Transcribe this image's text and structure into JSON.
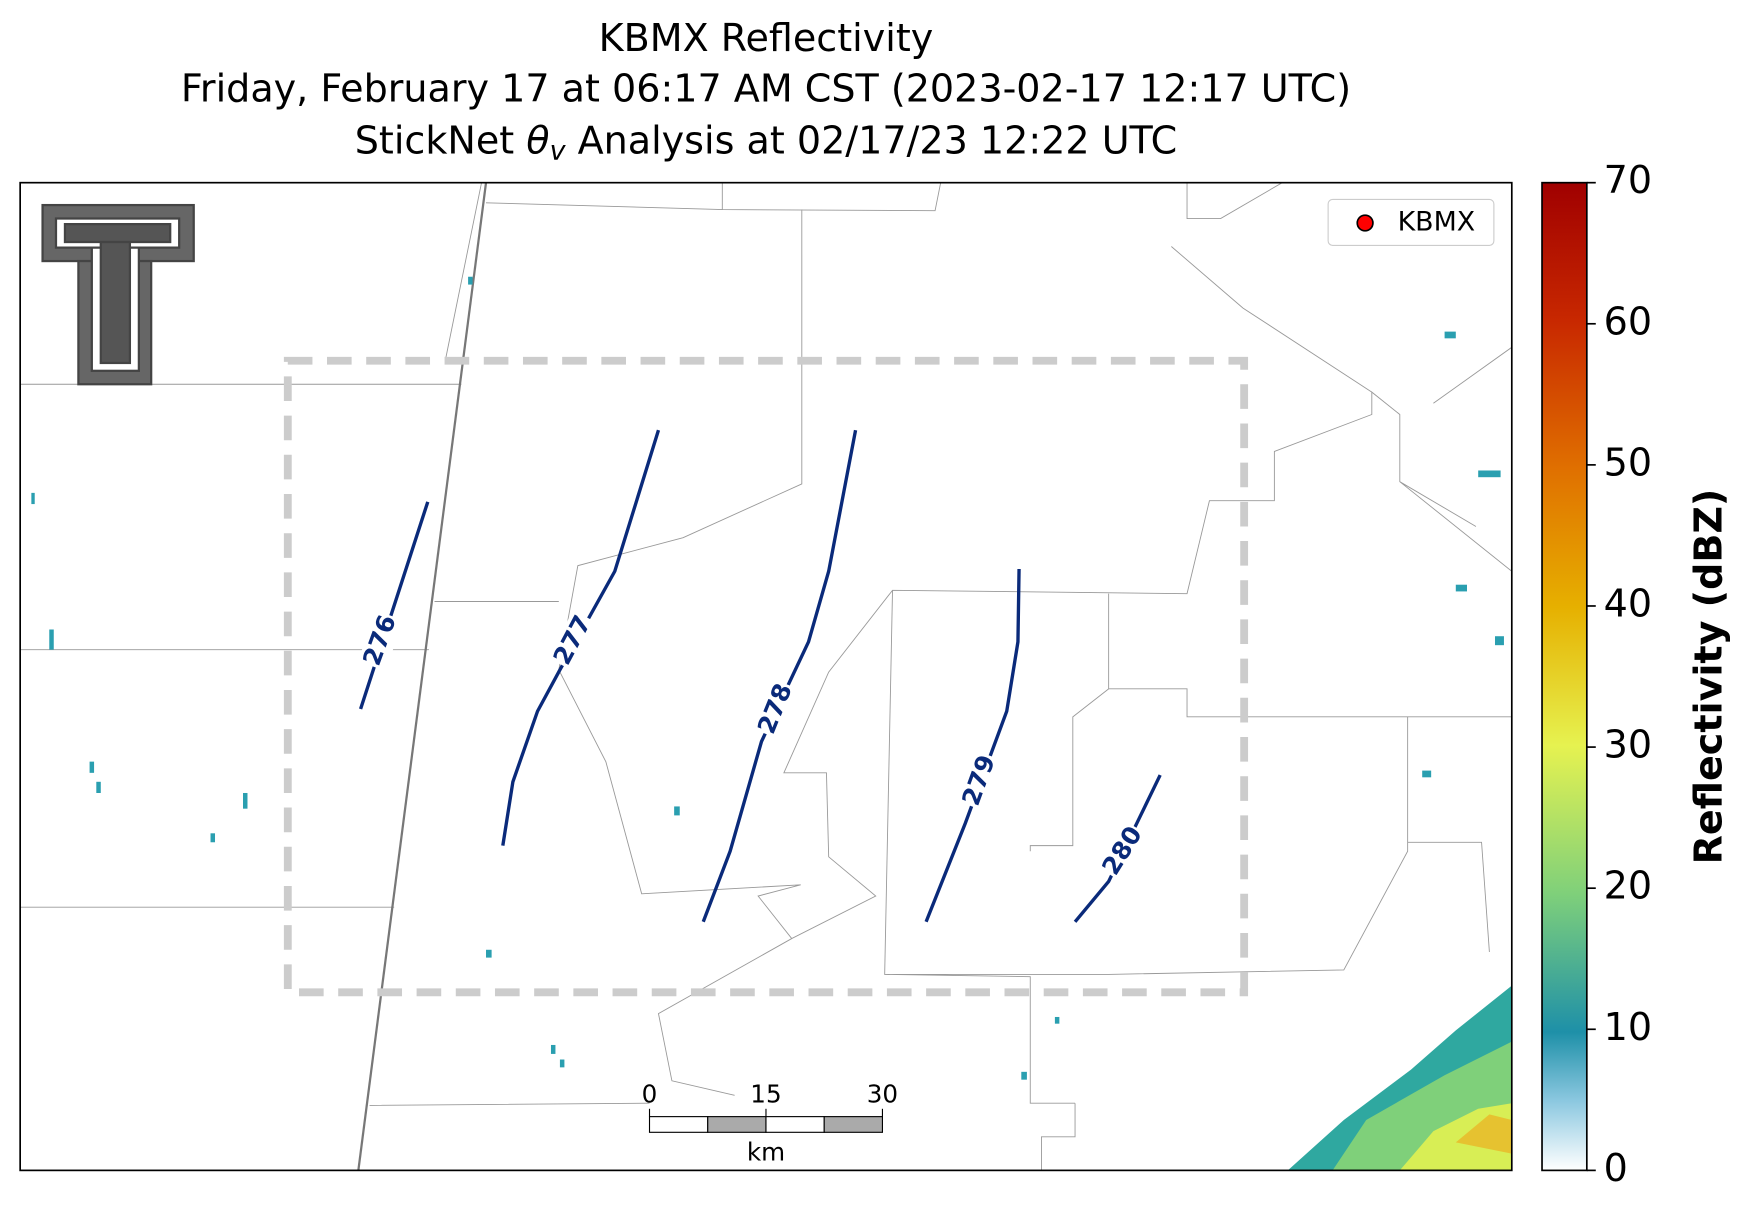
{
  "title": {
    "line1": "KBMX Reflectivity",
    "line2": "Friday, February 17 at 06:17 AM CST (2023-02-17 12:17 UTC)",
    "line3_pre": "StickNet ",
    "line3_symbol": "θ",
    "line3_sub": "v",
    "line3_post": " Analysis at 02/17/23 12:22 UTC"
  },
  "legend": {
    "label": "KBMX",
    "color": "#ff0000"
  },
  "contours": [
    {
      "level": 276
    },
    {
      "level": 277
    },
    {
      "level": 278
    },
    {
      "level": 279
    },
    {
      "level": 280
    }
  ],
  "contour_color": "#0a2a7a",
  "scale_bar": {
    "ticks": [
      0,
      15,
      30
    ],
    "unit": "km"
  },
  "colorbar": {
    "label": "Reflectivity (dBZ)",
    "lim": [
      0,
      70
    ],
    "ticks": [
      0,
      10,
      20,
      30,
      40,
      50,
      60,
      70
    ]
  }
}
